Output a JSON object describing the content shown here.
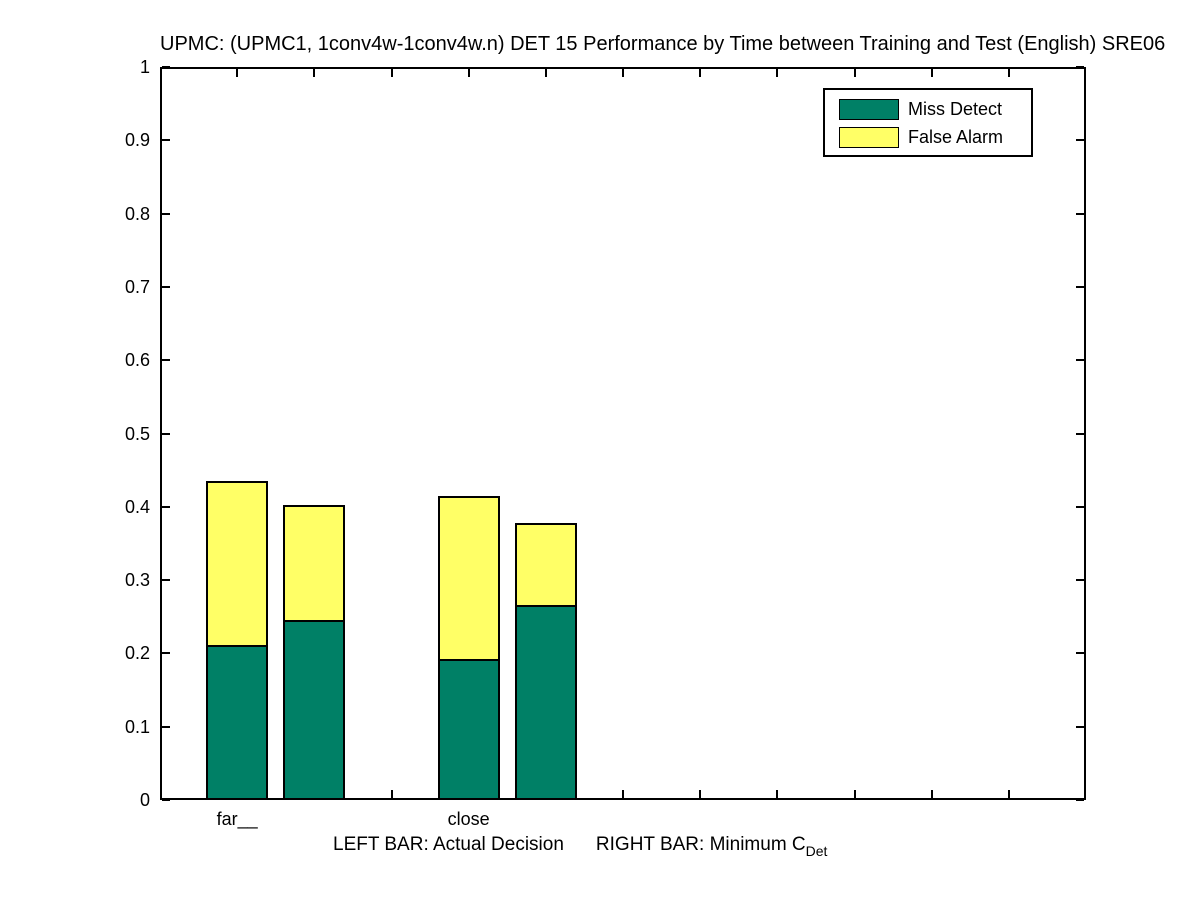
{
  "title": "UPMC: (UPMC1, 1conv4w-1conv4w.n) DET 15 Performance by Time between Training and Test (English) SRE06",
  "legend": {
    "items": [
      {
        "label": "Miss Detect",
        "color": "#008066"
      },
      {
        "label": "False Alarm",
        "color": "#ffff66"
      }
    ]
  },
  "footer": {
    "left": "LEFT BAR: Actual Decision",
    "right": "RIGHT BAR: Minimum C",
    "right_subscript": "Det"
  },
  "chart_data": {
    "type": "bar",
    "stacked": true,
    "title": "UPMC: (UPMC1, 1conv4w-1conv4w.n) DET 15 Performance by Time between Training and Test (English) SRE06",
    "ylabel": "",
    "xlabel": "",
    "ylim": [
      0,
      1
    ],
    "xlim": [
      0,
      12
    ],
    "ytick_labels": [
      "0",
      "0.1",
      "0.2",
      "0.3",
      "0.4",
      "0.5",
      "0.6",
      "0.7",
      "0.8",
      "0.9",
      "1"
    ],
    "ytick_values": [
      0,
      0.1,
      0.2,
      0.3,
      0.4,
      0.5,
      0.6,
      0.7,
      0.8,
      0.9,
      1
    ],
    "xtick_positions": [
      1,
      2,
      3,
      4,
      5,
      6,
      7,
      8,
      9,
      10,
      11
    ],
    "xtick_labels": {
      "1": "far__",
      "4": "close"
    },
    "bar_width_units": 0.8,
    "series_names": [
      "Miss Detect",
      "False Alarm"
    ],
    "colors": {
      "miss_detect": "#008066",
      "false_alarm": "#ffff66"
    },
    "groups": [
      {
        "category": "far__",
        "bars": [
          {
            "kind": "actual_decision",
            "x": 1,
            "miss_detect": 0.211,
            "false_alarm": 0.224,
            "total": 0.435
          },
          {
            "kind": "minimum_cdet",
            "x": 2,
            "miss_detect": 0.246,
            "false_alarm": 0.157,
            "total": 0.403
          }
        ]
      },
      {
        "category": "close",
        "bars": [
          {
            "kind": "actual_decision",
            "x": 4,
            "miss_detect": 0.192,
            "false_alarm": 0.223,
            "total": 0.415
          },
          {
            "kind": "minimum_cdet",
            "x": 5,
            "miss_detect": 0.266,
            "false_alarm": 0.112,
            "total": 0.378
          }
        ]
      }
    ]
  }
}
